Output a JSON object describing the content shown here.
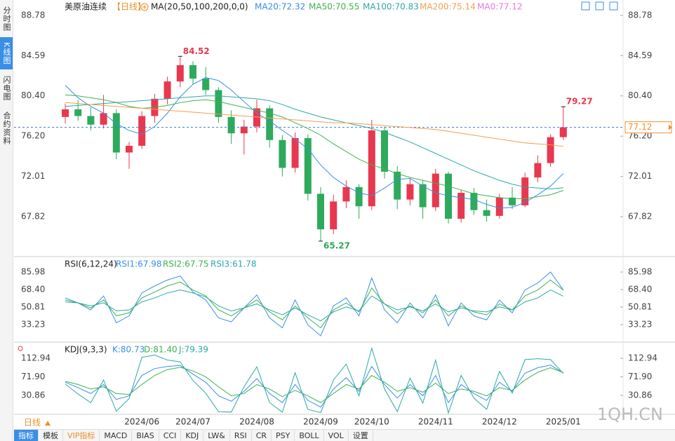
{
  "header": {
    "title": "美原油连续",
    "period": "【日线】",
    "indicator": "MA(20,50,100,200,0,0)"
  },
  "sidebar": [
    "分时图",
    "K线图",
    "闪电图",
    "合约资料"
  ],
  "footer": {
    "period": "日线",
    "tabs": [
      "指标",
      "模板",
      "VIP指标",
      "MACD",
      "BIAS",
      "CCI",
      "KDJ",
      "LW&",
      "RSI",
      "CR",
      "PSY",
      "BOLL",
      "VOL",
      "设置"
    ],
    "watermark": "1QH.CN"
  },
  "chart_data": [
    {
      "type": "candlestick",
      "categories": [
        null,
        null,
        null,
        null,
        null,
        null,
        "2024/06",
        null,
        null,
        null,
        "2024/07",
        null,
        null,
        null,
        null,
        "2024/08",
        null,
        null,
        null,
        null,
        "2024/09",
        null,
        null,
        null,
        "2024/10",
        null,
        null,
        null,
        null,
        "2024/11",
        null,
        null,
        null,
        null,
        "2024/12",
        null,
        null,
        null,
        null,
        "2025/01"
      ],
      "open": [
        78.2,
        79.0,
        78.3,
        77.4,
        78.6,
        74.5,
        75.2,
        78.3,
        80.1,
        81.9,
        83.6,
        82.2,
        81.0,
        78.2,
        76.5,
        77.2,
        79.1,
        75.8,
        72.9,
        76.0,
        70.2,
        66.5,
        69.4,
        70.9,
        68.9,
        76.8,
        72.5,
        69.6,
        71.2,
        68.8,
        72.3,
        67.6,
        70.3,
        68.5,
        67.9,
        69.8,
        69.0,
        71.9,
        73.4,
        76.1
      ],
      "high": [
        79.6,
        80.0,
        79.2,
        80.5,
        79.0,
        75.6,
        78.8,
        80.6,
        82.4,
        84.52,
        84.0,
        83.4,
        81.3,
        78.9,
        77.9,
        80.0,
        79.4,
        76.3,
        76.6,
        76.4,
        70.9,
        70.1,
        71.6,
        71.2,
        77.9,
        77.2,
        73.1,
        71.8,
        71.6,
        72.8,
        72.5,
        70.6,
        70.8,
        69.6,
        70.2,
        70.9,
        72.4,
        74.2,
        76.4,
        79.27
      ],
      "low": [
        77.5,
        77.8,
        76.8,
        77.0,
        73.8,
        72.8,
        74.9,
        77.6,
        79.5,
        81.3,
        81.6,
        80.5,
        77.6,
        75.4,
        74.3,
        76.6,
        75.0,
        72.0,
        72.4,
        69.5,
        65.27,
        66.0,
        68.7,
        67.6,
        68.5,
        71.8,
        68.6,
        69.0,
        67.6,
        68.4,
        67.1,
        67.2,
        68.0,
        67.3,
        67.6,
        68.6,
        68.8,
        71.4,
        73.0,
        75.8
      ],
      "close": [
        79.0,
        78.3,
        77.4,
        78.6,
        74.5,
        75.2,
        78.3,
        80.1,
        81.9,
        83.6,
        82.2,
        81.0,
        78.2,
        76.5,
        77.2,
        79.1,
        75.8,
        72.9,
        76.0,
        70.2,
        66.5,
        69.4,
        70.9,
        68.9,
        76.8,
        72.5,
        69.6,
        71.2,
        68.8,
        72.3,
        67.6,
        70.3,
        68.5,
        67.9,
        69.8,
        69.0,
        71.9,
        73.4,
        76.1,
        77.12
      ],
      "bull_color": "#e8384f",
      "bear_color": "#2eaa5c",
      "price_line_color": "#3a7fd0",
      "price_box_color": "#f0902a",
      "ylim": [
        63.73,
        89.8
      ],
      "yticks": [
        88.78,
        84.59,
        {
          "value": 80.4,
          "label": "80.40"
        },
        {
          "value": 76.2,
          "label": "76.20"
        },
        72.01,
        67.82
      ],
      "series": [
        {
          "name": "MA20:72.32",
          "color": "#3a8ee6",
          "values": [
            81.5,
            80.2,
            79.3,
            78.6,
            77.5,
            76.8,
            76.4,
            77.2,
            78.6,
            80.3,
            81.6,
            82.3,
            82.0,
            81.0,
            79.8,
            78.6,
            77.8,
            76.8,
            75.9,
            74.9,
            73.2,
            71.9,
            71.0,
            70.3,
            70.0,
            70.8,
            71.7,
            71.8,
            71.0,
            70.3,
            70.0,
            69.8,
            69.6,
            69.1,
            68.7,
            68.8,
            69.3,
            70.1,
            71.0,
            72.32
          ]
        },
        {
          "name": "MA50:70.55",
          "color": "#3cb44b",
          "values": [
            80.5,
            80.4,
            80.2,
            80.0,
            79.7,
            79.3,
            79.1,
            79.2,
            79.4,
            79.7,
            79.9,
            80.0,
            79.8,
            79.5,
            79.2,
            78.9,
            78.6,
            78.2,
            77.6,
            77.0,
            76.3,
            75.4,
            74.6,
            73.8,
            73.2,
            72.8,
            72.3,
            71.9,
            71.6,
            71.3,
            71.0,
            70.6,
            70.2,
            70.0,
            69.8,
            69.7,
            69.7,
            69.9,
            70.1,
            70.55
          ]
        },
        {
          "name": "MA100:70.83",
          "color": "#2ca8a8",
          "values": [
            79.3,
            79.4,
            79.5,
            79.6,
            79.7,
            79.8,
            79.9,
            80.0,
            80.1,
            80.2,
            80.3,
            80.4,
            80.4,
            80.3,
            80.2,
            80.1,
            79.9,
            79.5,
            79.0,
            78.6,
            78.2,
            77.9,
            77.6,
            77.3,
            77.0,
            76.6,
            76.1,
            75.6,
            75.0,
            74.4,
            73.8,
            73.2,
            72.6,
            72.1,
            71.6,
            71.2,
            70.9,
            70.8,
            70.7,
            70.83
          ]
        },
        {
          "name": "MA200:75.14",
          "color": "#f0a050",
          "values": [
            79.7,
            79.6,
            79.5,
            79.4,
            79.3,
            79.2,
            79.1,
            79.0,
            78.9,
            78.8,
            78.7,
            78.6,
            78.5,
            78.4,
            78.3,
            78.2,
            78.1,
            78.0,
            77.9,
            77.8,
            77.7,
            77.6,
            77.6,
            77.5,
            77.4,
            77.3,
            77.2,
            77.1,
            77.0,
            76.9,
            76.7,
            76.5,
            76.3,
            76.1,
            75.9,
            75.7,
            75.5,
            75.4,
            75.3,
            75.14
          ]
        }
      ],
      "legend_only": [
        {
          "name": "MA0:77.12",
          "color": "#e07ae0"
        }
      ]
    },
    {
      "type": "line",
      "title": "RSI(6,12,24)",
      "ylim": [
        17.76,
        98.64
      ],
      "yticks": [
        85.98,
        {
          "value": 68.4,
          "label": "68.40"
        },
        50.81,
        33.23
      ],
      "series": [
        {
          "name": "RSI1:67.98",
          "color": "#3a8ee6",
          "values": [
            60,
            55,
            48,
            62,
            35,
            42,
            65,
            72,
            78,
            82,
            66,
            58,
            40,
            36,
            50,
            63,
            40,
            30,
            58,
            33,
            22,
            52,
            60,
            42,
            80,
            48,
            35,
            55,
            40,
            63,
            32,
            55,
            42,
            38,
            58,
            45,
            68,
            75,
            86,
            67.98
          ]
        },
        {
          "name": "RSI2:67.75",
          "color": "#3cb44b",
          "values": [
            58,
            55,
            50,
            58,
            42,
            45,
            60,
            66,
            72,
            76,
            68,
            62,
            48,
            42,
            50,
            58,
            46,
            38,
            52,
            40,
            30,
            48,
            55,
            46,
            70,
            54,
            44,
            52,
            45,
            58,
            42,
            52,
            46,
            43,
            54,
            48,
            62,
            68,
            78,
            67.75
          ]
        },
        {
          "name": "RSI3:61.78",
          "color": "#2ca8a8",
          "values": [
            56,
            55,
            52,
            55,
            47,
            48,
            56,
            60,
            65,
            68,
            65,
            61,
            52,
            47,
            50,
            54,
            48,
            43,
            50,
            43,
            37,
            46,
            51,
            47,
            62,
            54,
            48,
            51,
            47,
            54,
            46,
            50,
            47,
            46,
            51,
            48,
            56,
            60,
            68,
            61.78
          ]
        }
      ]
    },
    {
      "type": "line",
      "title": "KDJ(9,3,3)",
      "ylim": [
        -9.4,
        142.37
      ],
      "yticks": [
        112.94,
        {
          "value": 71.9,
          "label": "71.90"
        },
        30.86
      ],
      "series": [
        {
          "name": "K:80.73",
          "color": "#3a8ee6",
          "values": [
            60,
            48,
            35,
            55,
            22,
            30,
            75,
            90,
            95,
            97,
            78,
            60,
            30,
            18,
            40,
            68,
            35,
            15,
            55,
            20,
            5,
            45,
            70,
            40,
            95,
            55,
            25,
            55,
            30,
            75,
            15,
            55,
            35,
            20,
            60,
            40,
            80,
            92,
            98,
            80.73
          ]
        },
        {
          "name": "D:81.40",
          "color": "#3cb44b",
          "values": [
            62,
            55,
            45,
            50,
            35,
            33,
            55,
            75,
            88,
            93,
            85,
            72,
            50,
            30,
            35,
            55,
            45,
            28,
            42,
            30,
            15,
            35,
            55,
            45,
            75,
            60,
            40,
            48,
            38,
            58,
            35,
            45,
            40,
            30,
            48,
            42,
            65,
            82,
            92,
            81.4
          ]
        },
        {
          "name": "J:79.39",
          "color": "#2ca8a8",
          "values": [
            56,
            34,
            15,
            65,
            -4,
            24,
            115,
            120,
            109,
            105,
            64,
            36,
            -5,
            -6,
            50,
            94,
            15,
            -6,
            81,
            0,
            -7,
            65,
            100,
            30,
            135,
            45,
            -5,
            69,
            14,
            109,
            -8,
            75,
            25,
            0,
            84,
            36,
            110,
            112,
            110,
            79.39
          ]
        }
      ]
    }
  ]
}
